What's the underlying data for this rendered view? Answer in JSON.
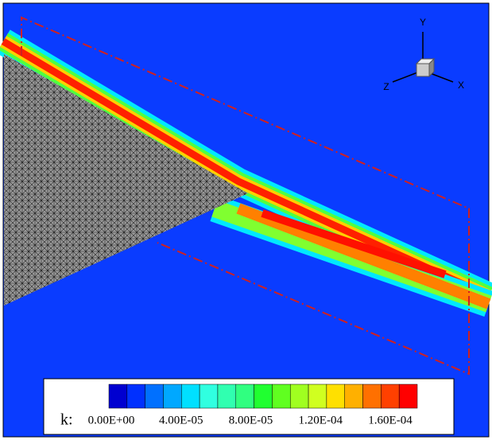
{
  "triad": {
    "x": "X",
    "y": "Y",
    "z": "Z"
  },
  "colorbar": {
    "label": "k:",
    "colors": [
      "#0000d0",
      "#0030ff",
      "#0070ff",
      "#00a8ff",
      "#00e0ff",
      "#30ffe0",
      "#30ffb0",
      "#30ff80",
      "#20ff30",
      "#60ff20",
      "#a0ff20",
      "#d0ff20",
      "#ffe000",
      "#ffb000",
      "#ff7000",
      "#ff4000",
      "#ff0000"
    ],
    "ticks": [
      "0.00E+00",
      "4.00E-05",
      "8.00E-05",
      "1.20E-04",
      "1.60E-04"
    ]
  }
}
